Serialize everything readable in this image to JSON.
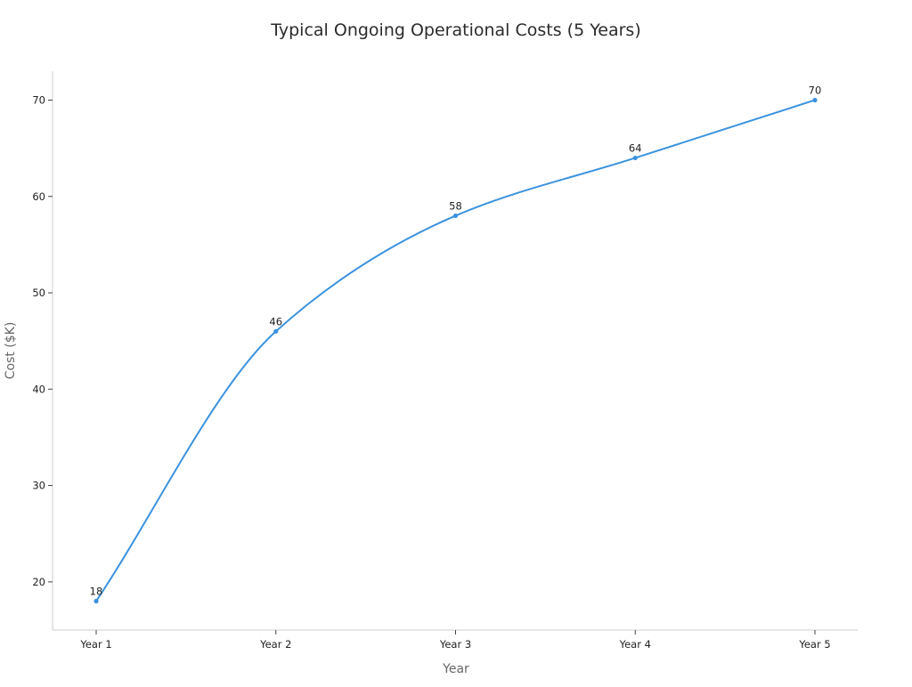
{
  "chart_data": {
    "type": "line",
    "title": "Typical Ongoing Operational Costs (5 Years)",
    "xlabel": "Year",
    "ylabel": "Cost ($K)",
    "categories": [
      "Year 1",
      "Year 2",
      "Year 3",
      "Year 4",
      "Year 5"
    ],
    "series": [
      {
        "values": [
          18,
          46,
          58,
          64,
          70
        ]
      }
    ],
    "ylim": [
      15,
      73
    ],
    "yticks": [
      20,
      30,
      40,
      50,
      60,
      70
    ],
    "smooth": true,
    "grid": false,
    "legend": "none",
    "colors": {
      "line": "#3b92de",
      "point": "#3b92de"
    }
  }
}
